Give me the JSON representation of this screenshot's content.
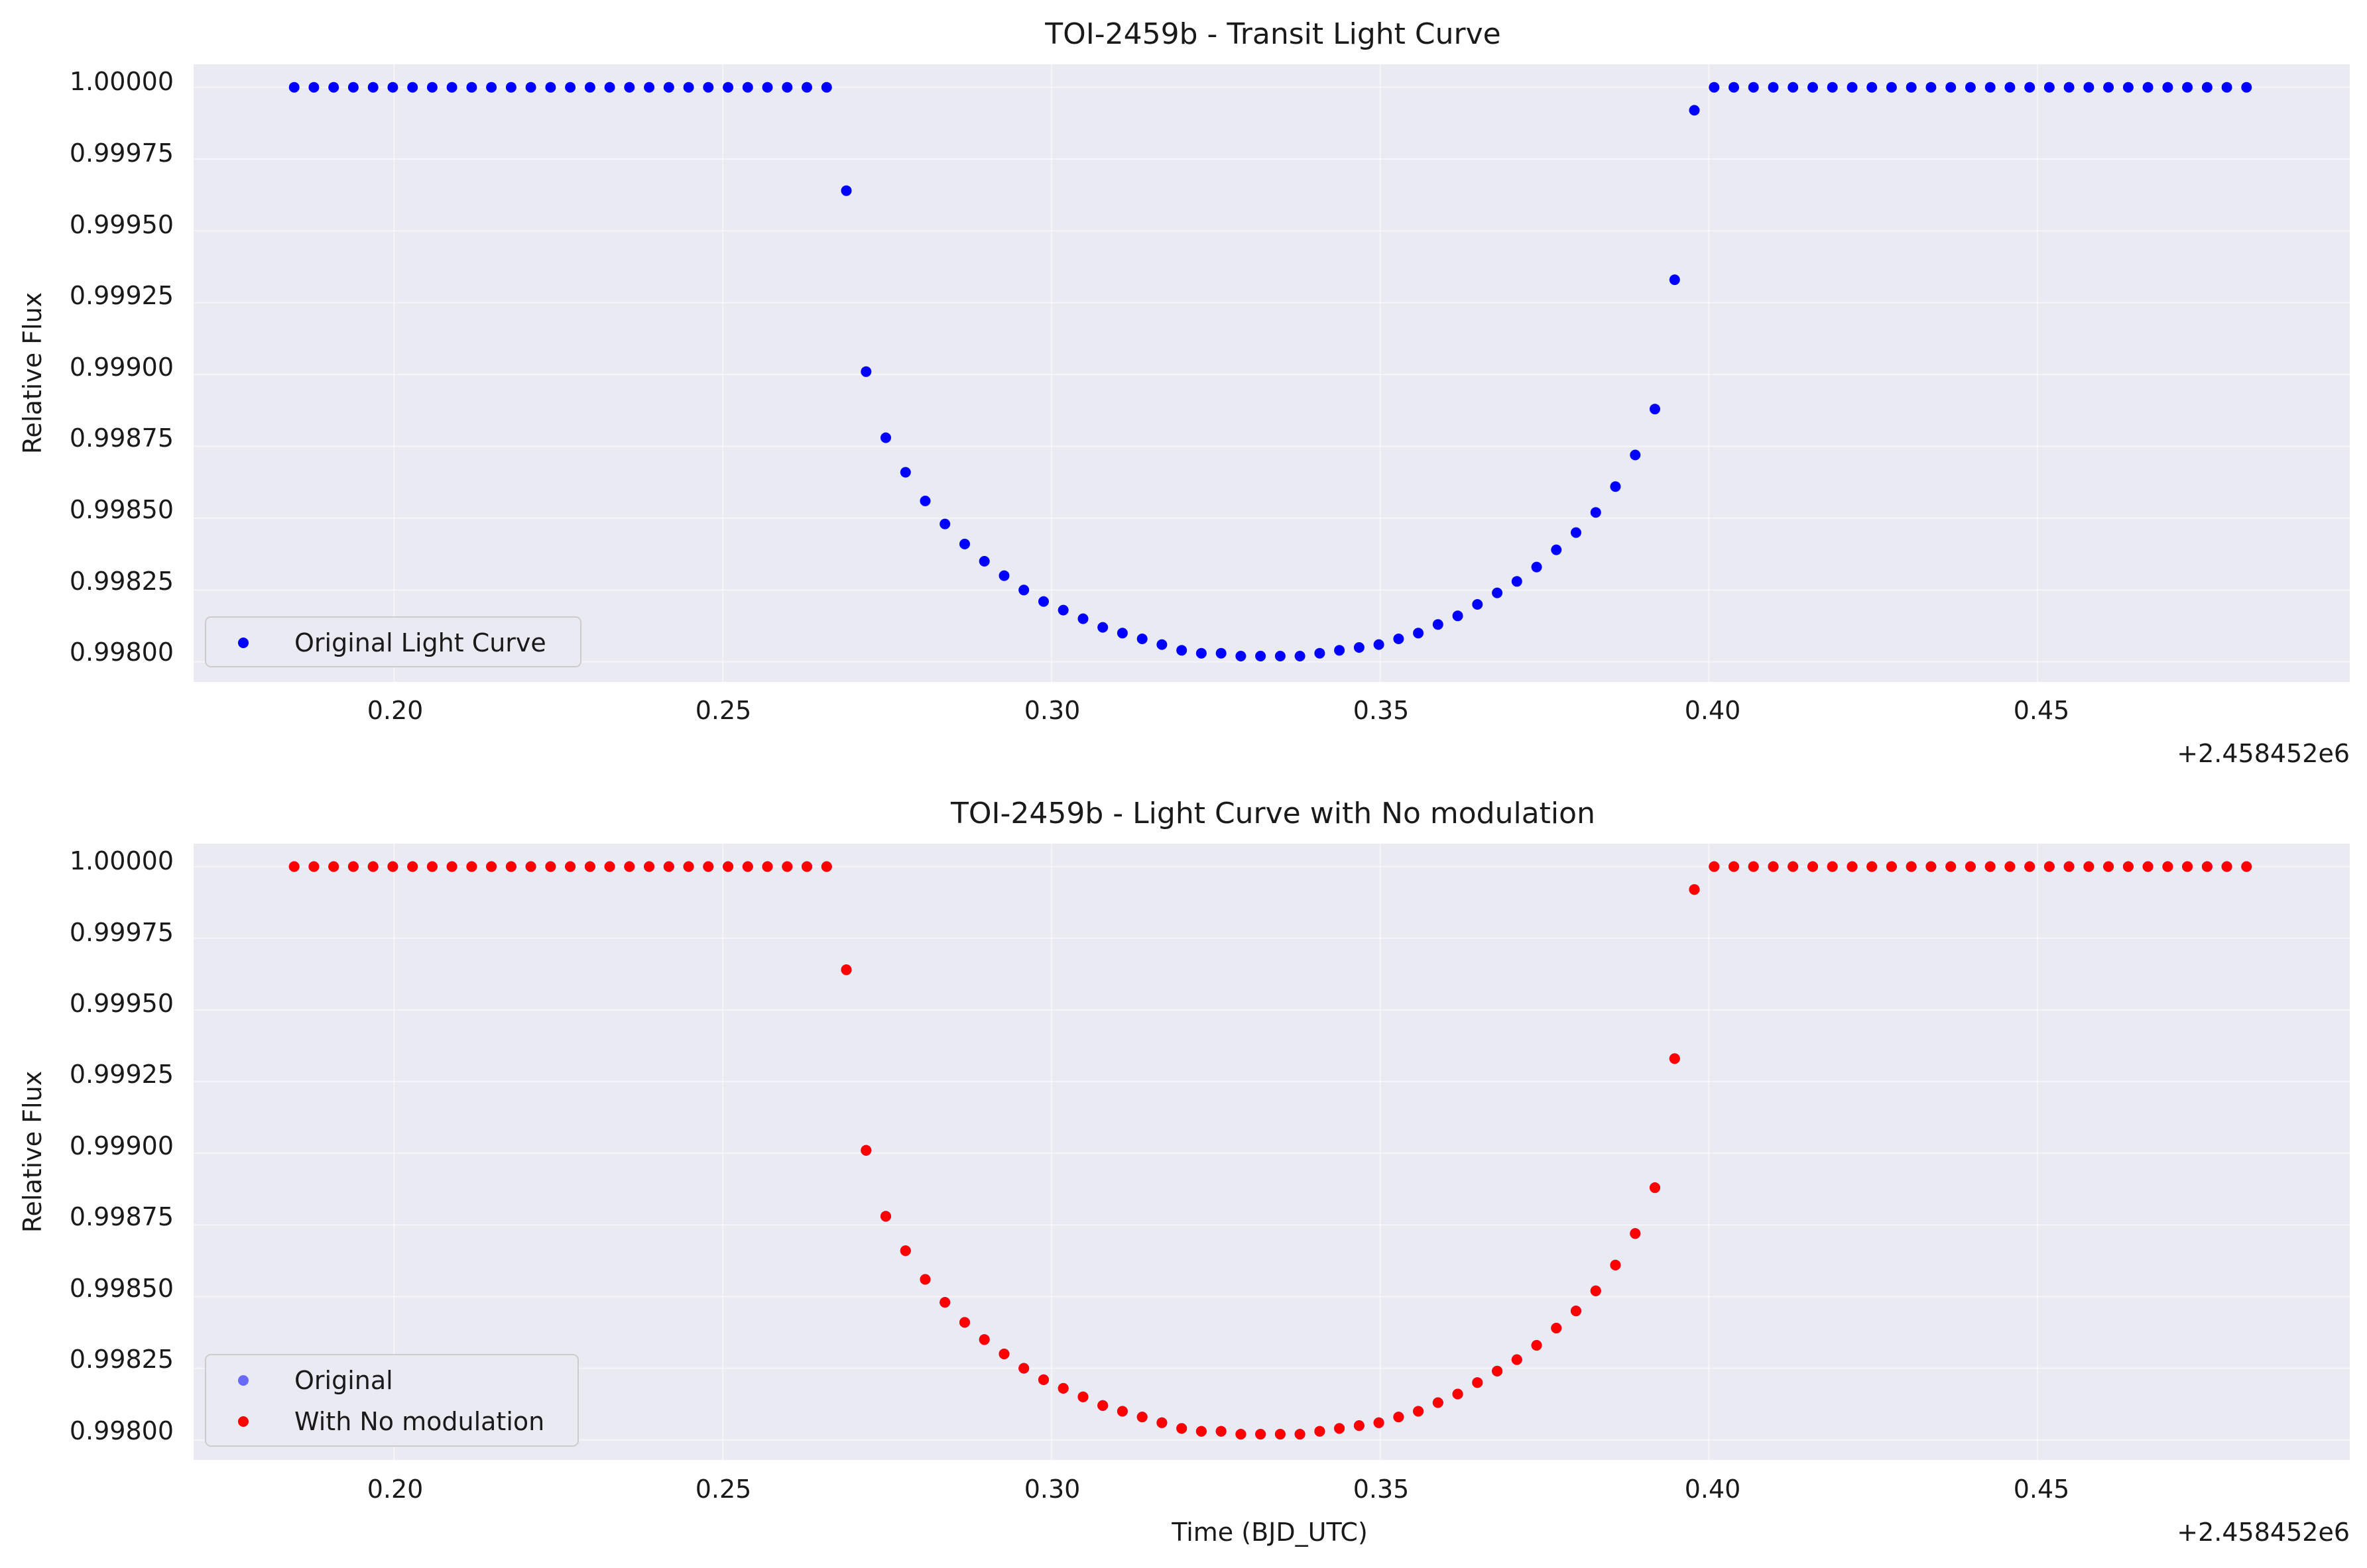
{
  "chart_data": [
    {
      "type": "scatter",
      "title": "TOI-2459b - Transit Light Curve",
      "xlabel": "",
      "ylabel": "Relative Flux",
      "x_offset_label": "+2.458452e6",
      "xlim": [
        0.1695,
        0.4975
      ],
      "ylim": [
        0.99793,
        1.00008
      ],
      "xticks": [
        "0.20",
        "0.25",
        "0.30",
        "0.35",
        "0.40",
        "0.45"
      ],
      "yticks": [
        "1.00000",
        "0.99975",
        "0.99950",
        "0.99925",
        "0.99900",
        "0.99875",
        "0.99850",
        "0.99825",
        "0.99800"
      ],
      "grid": true,
      "legend": {
        "placement": "lower-left",
        "entries": [
          {
            "name": "Original Light Curve",
            "color": "#0000ff"
          }
        ]
      },
      "series": [
        {
          "name": "Original Light Curve",
          "color": "#0000ff",
          "x": [
            0.1848,
            0.1878,
            0.1908,
            0.1938,
            0.1968,
            0.1998,
            0.2028,
            0.2058,
            0.2088,
            0.2118,
            0.2148,
            0.2178,
            0.2208,
            0.2238,
            0.2268,
            0.2298,
            0.2328,
            0.2358,
            0.2388,
            0.2418,
            0.2448,
            0.2478,
            0.2508,
            0.2538,
            0.2568,
            0.2598,
            0.2628,
            0.2658,
            0.2688,
            0.2718,
            0.2748,
            0.2778,
            0.2808,
            0.2838,
            0.2868,
            0.2898,
            0.2928,
            0.2958,
            0.2988,
            0.3018,
            0.3048,
            0.3078,
            0.3108,
            0.3138,
            0.3168,
            0.3198,
            0.3228,
            0.3258,
            0.3288,
            0.3318,
            0.3348,
            0.3378,
            0.3408,
            0.3438,
            0.3468,
            0.3498,
            0.3528,
            0.3558,
            0.3588,
            0.3618,
            0.3648,
            0.3678,
            0.3708,
            0.3738,
            0.3768,
            0.3798,
            0.3828,
            0.3858,
            0.3888,
            0.3918,
            0.3948,
            0.3978,
            0.4008,
            0.4038,
            0.4068,
            0.4098,
            0.4128,
            0.4158,
            0.4188,
            0.4218,
            0.4248,
            0.4278,
            0.4308,
            0.4338,
            0.4368,
            0.4398,
            0.4428,
            0.4458,
            0.4488,
            0.4518,
            0.4548,
            0.4578,
            0.4608,
            0.4638,
            0.4668,
            0.4698,
            0.4728,
            0.4758,
            0.4788,
            0.4818
          ],
          "y": [
            1.0,
            1.0,
            1.0,
            1.0,
            1.0,
            1.0,
            1.0,
            1.0,
            1.0,
            1.0,
            1.0,
            1.0,
            1.0,
            1.0,
            1.0,
            1.0,
            1.0,
            1.0,
            1.0,
            1.0,
            1.0,
            1.0,
            1.0,
            1.0,
            1.0,
            1.0,
            1.0,
            1.0,
            0.99964,
            0.99901,
            0.99878,
            0.99866,
            0.99856,
            0.99848,
            0.99841,
            0.99835,
            0.9983,
            0.99825,
            0.99821,
            0.99818,
            0.99815,
            0.99812,
            0.9981,
            0.99808,
            0.99806,
            0.99804,
            0.99803,
            0.99803,
            0.99802,
            0.99802,
            0.99802,
            0.99802,
            0.99803,
            0.99804,
            0.99805,
            0.99806,
            0.99808,
            0.9981,
            0.99813,
            0.99816,
            0.9982,
            0.99824,
            0.99828,
            0.99833,
            0.99839,
            0.99845,
            0.99852,
            0.99861,
            0.99872,
            0.99888,
            0.99933,
            0.99992,
            1.0,
            1.0,
            1.0,
            1.0,
            1.0,
            1.0,
            1.0,
            1.0,
            1.0,
            1.0,
            1.0,
            1.0,
            1.0,
            1.0,
            1.0,
            1.0,
            1.0,
            1.0,
            1.0,
            1.0,
            1.0,
            1.0,
            1.0,
            1.0,
            1.0,
            1.0,
            1.0,
            1.0
          ]
        }
      ]
    },
    {
      "type": "scatter",
      "title": "TOI-2459b - Light Curve with No modulation",
      "xlabel": "Time (BJD_UTC)",
      "ylabel": "Relative Flux",
      "x_offset_label": "+2.458452e6",
      "xlim": [
        0.1695,
        0.4975
      ],
      "ylim": [
        0.99793,
        1.00008
      ],
      "xticks": [
        "0.20",
        "0.25",
        "0.30",
        "0.35",
        "0.40",
        "0.45"
      ],
      "yticks": [
        "1.00000",
        "0.99975",
        "0.99950",
        "0.99925",
        "0.99900",
        "0.99875",
        "0.99850",
        "0.99825",
        "0.99800"
      ],
      "grid": true,
      "legend": {
        "placement": "lower-left",
        "entries": [
          {
            "name": "Original",
            "color": "#0000ff"
          },
          {
            "name": "With No modulation",
            "color": "#ff0000"
          }
        ]
      },
      "series": [
        {
          "name": "Original",
          "color": "#0000ff",
          "x": [
            0.1848,
            0.1878,
            0.1908,
            0.1938,
            0.1968,
            0.1998,
            0.2028,
            0.2058,
            0.2088,
            0.2118,
            0.2148,
            0.2178,
            0.2208,
            0.2238,
            0.2268,
            0.2298,
            0.2328,
            0.2358,
            0.2388,
            0.2418,
            0.2448,
            0.2478,
            0.2508,
            0.2538,
            0.2568,
            0.2598,
            0.2628,
            0.2658,
            0.2688,
            0.2718,
            0.2748,
            0.2778,
            0.2808,
            0.2838,
            0.2868,
            0.2898,
            0.2928,
            0.2958,
            0.2988,
            0.3018,
            0.3048,
            0.3078,
            0.3108,
            0.3138,
            0.3168,
            0.3198,
            0.3228,
            0.3258,
            0.3288,
            0.3318,
            0.3348,
            0.3378,
            0.3408,
            0.3438,
            0.3468,
            0.3498,
            0.3528,
            0.3558,
            0.3588,
            0.3618,
            0.3648,
            0.3678,
            0.3708,
            0.3738,
            0.3768,
            0.3798,
            0.3828,
            0.3858,
            0.3888,
            0.3918,
            0.3948,
            0.3978,
            0.4008,
            0.4038,
            0.4068,
            0.4098,
            0.4128,
            0.4158,
            0.4188,
            0.4218,
            0.4248,
            0.4278,
            0.4308,
            0.4338,
            0.4368,
            0.4398,
            0.4428,
            0.4458,
            0.4488,
            0.4518,
            0.4548,
            0.4578,
            0.4608,
            0.4638,
            0.4668,
            0.4698,
            0.4728,
            0.4758,
            0.4788,
            0.4818
          ],
          "y": [
            1.0,
            1.0,
            1.0,
            1.0,
            1.0,
            1.0,
            1.0,
            1.0,
            1.0,
            1.0,
            1.0,
            1.0,
            1.0,
            1.0,
            1.0,
            1.0,
            1.0,
            1.0,
            1.0,
            1.0,
            1.0,
            1.0,
            1.0,
            1.0,
            1.0,
            1.0,
            1.0,
            1.0,
            0.99964,
            0.99901,
            0.99878,
            0.99866,
            0.99856,
            0.99848,
            0.99841,
            0.99835,
            0.9983,
            0.99825,
            0.99821,
            0.99818,
            0.99815,
            0.99812,
            0.9981,
            0.99808,
            0.99806,
            0.99804,
            0.99803,
            0.99803,
            0.99802,
            0.99802,
            0.99802,
            0.99802,
            0.99803,
            0.99804,
            0.99805,
            0.99806,
            0.99808,
            0.9981,
            0.99813,
            0.99816,
            0.9982,
            0.99824,
            0.99828,
            0.99833,
            0.99839,
            0.99845,
            0.99852,
            0.99861,
            0.99872,
            0.99888,
            0.99933,
            0.99992,
            1.0,
            1.0,
            1.0,
            1.0,
            1.0,
            1.0,
            1.0,
            1.0,
            1.0,
            1.0,
            1.0,
            1.0,
            1.0,
            1.0,
            1.0,
            1.0,
            1.0,
            1.0,
            1.0,
            1.0,
            1.0,
            1.0,
            1.0,
            1.0,
            1.0,
            1.0,
            1.0,
            1.0
          ]
        },
        {
          "name": "With No modulation",
          "color": "#ff0000",
          "x": [
            0.1848,
            0.1878,
            0.1908,
            0.1938,
            0.1968,
            0.1998,
            0.2028,
            0.2058,
            0.2088,
            0.2118,
            0.2148,
            0.2178,
            0.2208,
            0.2238,
            0.2268,
            0.2298,
            0.2328,
            0.2358,
            0.2388,
            0.2418,
            0.2448,
            0.2478,
            0.2508,
            0.2538,
            0.2568,
            0.2598,
            0.2628,
            0.2658,
            0.2688,
            0.2718,
            0.2748,
            0.2778,
            0.2808,
            0.2838,
            0.2868,
            0.2898,
            0.2928,
            0.2958,
            0.2988,
            0.3018,
            0.3048,
            0.3078,
            0.3108,
            0.3138,
            0.3168,
            0.3198,
            0.3228,
            0.3258,
            0.3288,
            0.3318,
            0.3348,
            0.3378,
            0.3408,
            0.3438,
            0.3468,
            0.3498,
            0.3528,
            0.3558,
            0.3588,
            0.3618,
            0.3648,
            0.3678,
            0.3708,
            0.3738,
            0.3768,
            0.3798,
            0.3828,
            0.3858,
            0.3888,
            0.3918,
            0.3948,
            0.3978,
            0.4008,
            0.4038,
            0.4068,
            0.4098,
            0.4128,
            0.4158,
            0.4188,
            0.4218,
            0.4248,
            0.4278,
            0.4308,
            0.4338,
            0.4368,
            0.4398,
            0.4428,
            0.4458,
            0.4488,
            0.4518,
            0.4548,
            0.4578,
            0.4608,
            0.4638,
            0.4668,
            0.4698,
            0.4728,
            0.4758,
            0.4788,
            0.4818
          ],
          "y": [
            1.0,
            1.0,
            1.0,
            1.0,
            1.0,
            1.0,
            1.0,
            1.0,
            1.0,
            1.0,
            1.0,
            1.0,
            1.0,
            1.0,
            1.0,
            1.0,
            1.0,
            1.0,
            1.0,
            1.0,
            1.0,
            1.0,
            1.0,
            1.0,
            1.0,
            1.0,
            1.0,
            1.0,
            0.99964,
            0.99901,
            0.99878,
            0.99866,
            0.99856,
            0.99848,
            0.99841,
            0.99835,
            0.9983,
            0.99825,
            0.99821,
            0.99818,
            0.99815,
            0.99812,
            0.9981,
            0.99808,
            0.99806,
            0.99804,
            0.99803,
            0.99803,
            0.99802,
            0.99802,
            0.99802,
            0.99802,
            0.99803,
            0.99804,
            0.99805,
            0.99806,
            0.99808,
            0.9981,
            0.99813,
            0.99816,
            0.9982,
            0.99824,
            0.99828,
            0.99833,
            0.99839,
            0.99845,
            0.99852,
            0.99861,
            0.99872,
            0.99888,
            0.99933,
            0.99992,
            1.0,
            1.0,
            1.0,
            1.0,
            1.0,
            1.0,
            1.0,
            1.0,
            1.0,
            1.0,
            1.0,
            1.0,
            1.0,
            1.0,
            1.0,
            1.0,
            1.0,
            1.0,
            1.0,
            1.0,
            1.0,
            1.0,
            1.0,
            1.0,
            1.0,
            1.0,
            1.0,
            1.0
          ]
        }
      ]
    }
  ]
}
